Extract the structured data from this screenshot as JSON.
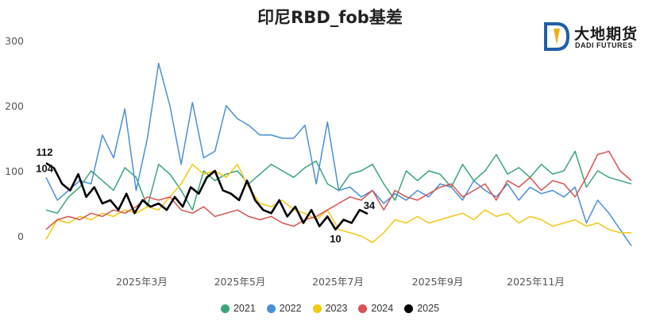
{
  "chart_data": {
    "type": "line",
    "title": "印尼RBD_fob基差",
    "xlabel": "",
    "ylabel": "",
    "ylim": [
      -30,
      310
    ],
    "yticks": [
      0,
      100,
      200,
      300
    ],
    "x_tick_labels": [
      "2025年3月",
      "2025年5月",
      "2025年7月",
      "2025年9月",
      "2025年11月"
    ],
    "x_axis_note": "seasonal overlay; x values are day-of-year positions (Jan 1 = 0)",
    "grid": false,
    "legend_placement": "bottom",
    "series": [
      {
        "name": "2021",
        "color": "#3aa57a",
        "x": [
          0,
          7,
          14,
          21,
          28,
          35,
          42,
          49,
          56,
          63,
          70,
          77,
          84,
          91,
          98,
          105,
          112,
          119,
          126,
          133,
          140,
          147,
          154,
          161,
          168,
          175,
          182,
          189,
          196,
          203,
          210,
          217,
          224,
          231,
          238,
          245,
          252,
          259,
          266,
          273,
          280,
          287,
          294,
          301,
          308,
          315,
          322,
          329,
          336,
          343,
          350,
          357,
          364
        ],
        "y": [
          40,
          35,
          60,
          75,
          100,
          85,
          70,
          105,
          90,
          45,
          110,
          95,
          70,
          40,
          100,
          85,
          95,
          100,
          80,
          95,
          110,
          100,
          90,
          105,
          115,
          80,
          70,
          95,
          100,
          110,
          80,
          55,
          100,
          85,
          100,
          95,
          75,
          110,
          85,
          100,
          125,
          95,
          105,
          90,
          110,
          95,
          100,
          130,
          75,
          100,
          90,
          85,
          80
        ]
      },
      {
        "name": "2022",
        "color": "#4a8fd8",
        "x": [
          0,
          7,
          14,
          21,
          28,
          35,
          42,
          49,
          56,
          63,
          70,
          77,
          84,
          91,
          98,
          105,
          112,
          119,
          126,
          133,
          140,
          147,
          154,
          161,
          168,
          175,
          182,
          189,
          196,
          203,
          210,
          217,
          224,
          231,
          238,
          245,
          252,
          259,
          266,
          273,
          280,
          287,
          294,
          301,
          308,
          315,
          322,
          329,
          336,
          343,
          350,
          357,
          364
        ],
        "y": [
          90,
          55,
          70,
          85,
          80,
          155,
          120,
          195,
          70,
          150,
          265,
          200,
          110,
          205,
          120,
          130,
          200,
          180,
          170,
          155,
          155,
          150,
          150,
          170,
          80,
          175,
          70,
          75,
          60,
          70,
          50,
          65,
          55,
          70,
          60,
          80,
          75,
          55,
          85,
          70,
          60,
          80,
          55,
          75,
          65,
          70,
          60,
          75,
          20,
          55,
          35,
          10,
          -15
        ]
      },
      {
        "name": "2023",
        "color": "#f2c811",
        "x": [
          0,
          7,
          14,
          21,
          28,
          35,
          42,
          49,
          56,
          63,
          70,
          77,
          84,
          91,
          98,
          105,
          112,
          119,
          126,
          133,
          140,
          147,
          154,
          161,
          168,
          175,
          182,
          189,
          196,
          203,
          210,
          217,
          224,
          231,
          238,
          245,
          252,
          259,
          266,
          273,
          280,
          287,
          294,
          301,
          308,
          315,
          322,
          329,
          336,
          343,
          350,
          357,
          364
        ],
        "y": [
          -5,
          25,
          20,
          30,
          25,
          35,
          30,
          40,
          35,
          45,
          40,
          60,
          80,
          110,
          95,
          100,
          90,
          110,
          75,
          50,
          45,
          55,
          40,
          35,
          25,
          40,
          10,
          5,
          0,
          -10,
          5,
          25,
          20,
          30,
          20,
          25,
          30,
          35,
          25,
          40,
          30,
          35,
          20,
          30,
          25,
          15,
          20,
          25,
          15,
          20,
          10,
          5,
          5
        ]
      },
      {
        "name": "2024",
        "color": "#d9534f",
        "x": [
          0,
          7,
          14,
          21,
          28,
          35,
          42,
          49,
          56,
          63,
          70,
          77,
          84,
          91,
          98,
          105,
          112,
          119,
          126,
          133,
          140,
          147,
          154,
          161,
          168,
          175,
          182,
          189,
          196,
          203,
          210,
          217,
          224,
          231,
          238,
          245,
          252,
          259,
          266,
          273,
          280,
          287,
          294,
          301,
          308,
          315,
          322,
          329,
          336,
          343,
          350,
          357,
          364
        ],
        "y": [
          10,
          25,
          30,
          25,
          35,
          30,
          40,
          35,
          45,
          60,
          55,
          60,
          40,
          35,
          45,
          30,
          35,
          40,
          30,
          25,
          30,
          20,
          15,
          25,
          30,
          40,
          50,
          60,
          55,
          70,
          40,
          70,
          60,
          55,
          65,
          75,
          80,
          60,
          70,
          80,
          55,
          85,
          75,
          90,
          70,
          85,
          80,
          60,
          90,
          125,
          130,
          100,
          85
        ]
      },
      {
        "name": "2025",
        "color": "#000000",
        "x": [
          0,
          5,
          10,
          15,
          20,
          25,
          30,
          35,
          40,
          45,
          50,
          55,
          60,
          65,
          70,
          75,
          80,
          85,
          90,
          95,
          100,
          105,
          110,
          115,
          120,
          125,
          130,
          135,
          140,
          145,
          150,
          155,
          160,
          165,
          170,
          175,
          180,
          185,
          190,
          195,
          200
        ],
        "y": [
          112,
          104,
          80,
          70,
          95,
          60,
          75,
          50,
          55,
          40,
          65,
          35,
          55,
          45,
          50,
          40,
          60,
          45,
          75,
          65,
          90,
          100,
          70,
          65,
          55,
          85,
          55,
          40,
          35,
          55,
          30,
          45,
          20,
          40,
          15,
          30,
          10,
          25,
          20,
          40,
          34
        ]
      }
    ],
    "annotations": [
      {
        "series": "2025",
        "x": 0,
        "y": 112,
        "text": "112"
      },
      {
        "series": "2025",
        "x": 5,
        "y": 104,
        "text": "104"
      },
      {
        "series": "2025",
        "x": 180,
        "y": 10,
        "text": "10"
      },
      {
        "series": "2025",
        "x": 200,
        "y": 34,
        "text": "34"
      }
    ]
  },
  "logo": {
    "name": "大地期货",
    "english": "DADI FUTURES"
  }
}
